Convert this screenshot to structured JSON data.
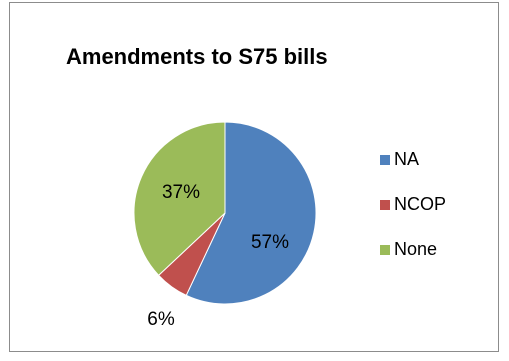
{
  "chart_data": {
    "type": "pie",
    "title": "Amendments to S75 bills",
    "categories": [
      "NA",
      "NCOP",
      "None"
    ],
    "values": [
      57,
      6,
      37
    ],
    "labels": [
      "57%",
      "6%",
      "37%"
    ],
    "colors": [
      "#4f81bd",
      "#c0504d",
      "#9bbb59"
    ],
    "legend_position": "right"
  }
}
